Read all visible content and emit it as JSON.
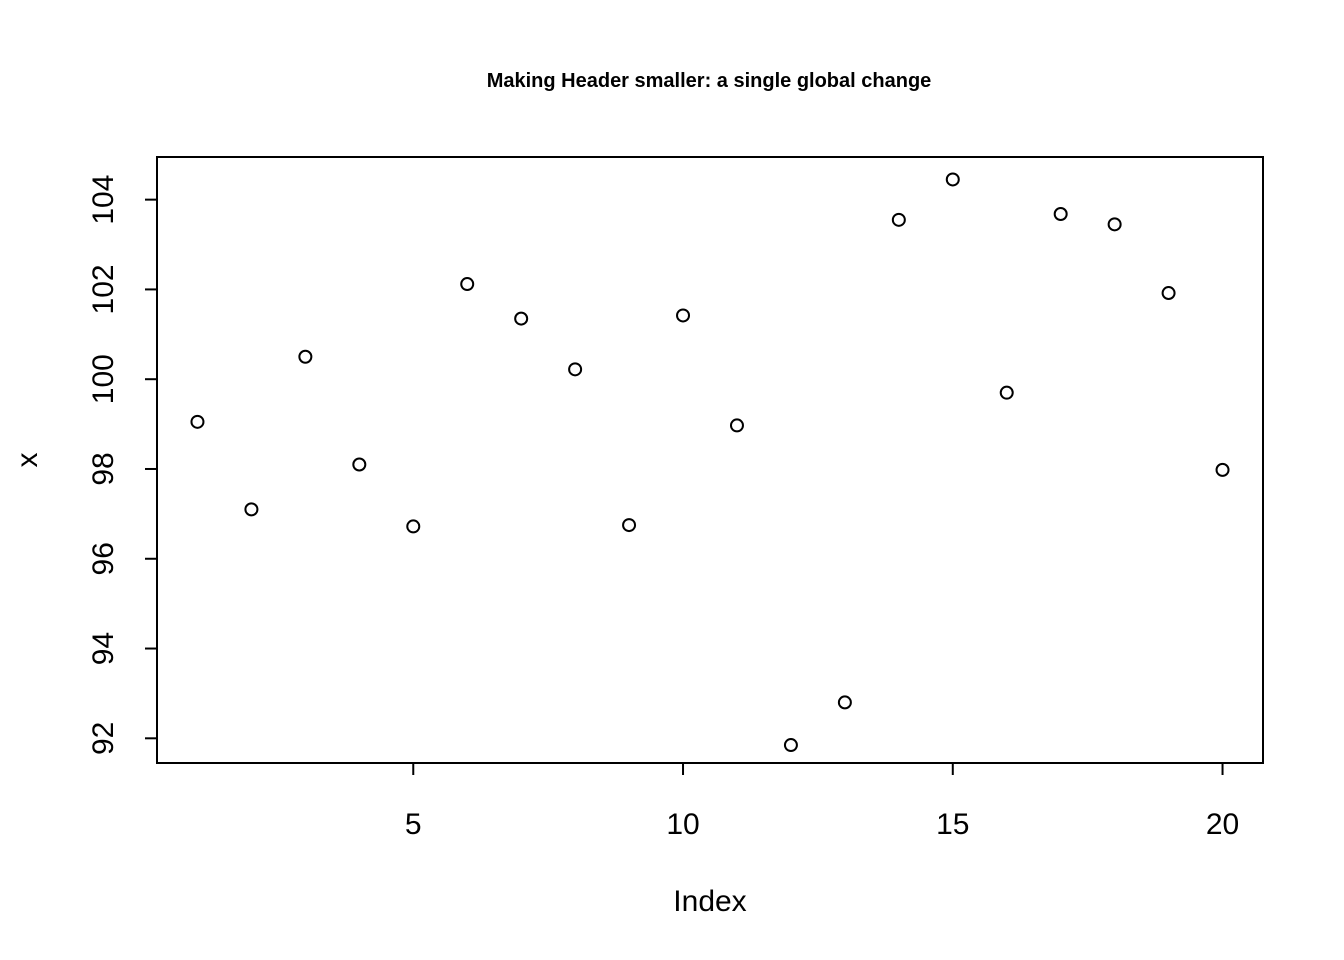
{
  "chart_data": {
    "type": "scatter",
    "title": "Making Header smaller: a single global change",
    "xlabel": "Index",
    "ylabel": "x",
    "xlim": [
      0.25,
      20.75
    ],
    "ylim": [
      91.45,
      104.95
    ],
    "xticks": [
      5,
      10,
      15,
      20
    ],
    "yticks": [
      92,
      94,
      96,
      98,
      100,
      102,
      104
    ],
    "grid": false,
    "x": [
      1,
      2,
      3,
      4,
      5,
      6,
      7,
      8,
      9,
      10,
      11,
      12,
      13,
      14,
      15,
      16,
      17,
      18,
      19,
      20
    ],
    "y": [
      99.05,
      97.1,
      100.5,
      98.1,
      96.72,
      102.12,
      101.35,
      100.22,
      96.75,
      101.42,
      98.97,
      91.85,
      92.8,
      103.55,
      104.45,
      99.7,
      103.68,
      103.45,
      101.92,
      97.98
    ]
  }
}
